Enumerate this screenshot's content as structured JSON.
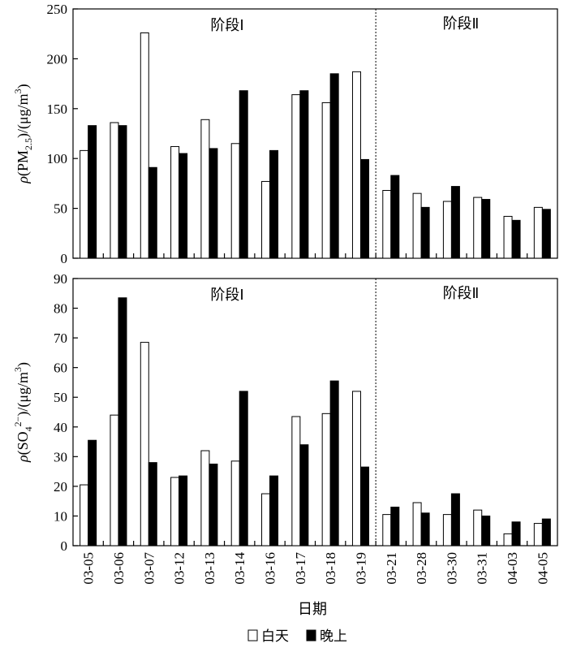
{
  "chart_data": [
    {
      "type": "bar",
      "categories": [
        "03-05",
        "03-06",
        "03-07",
        "03-12",
        "03-13",
        "03-14",
        "03-16",
        "03-17",
        "03-18",
        "03-19",
        "03-21",
        "03-28",
        "03-30",
        "03-31",
        "04-03",
        "04-05"
      ],
      "series": [
        {
          "name": "白天",
          "values": [
            108,
            136,
            226,
            112,
            139,
            115,
            77,
            164,
            156,
            187,
            68,
            65,
            57,
            61,
            42,
            51
          ],
          "color": "#ffffff"
        },
        {
          "name": "晚上",
          "values": [
            133,
            133,
            91,
            105,
            110,
            168,
            108,
            168,
            185,
            99,
            83,
            51,
            72,
            59,
            38,
            49
          ],
          "color": "#000000"
        }
      ],
      "ylabel_main": "ρ(PM",
      "ylabel_sub": "2.5",
      "ylabel_end": ")/(μg/m",
      "ylabel_sup": "3",
      "ylabel_close": ")",
      "ylim": [
        0,
        250
      ],
      "yticks": [
        0,
        50,
        100,
        150,
        200,
        250
      ],
      "phase_labels": [
        "阶段Ⅰ",
        "阶段Ⅱ"
      ],
      "phase_split_after_index": 9
    },
    {
      "type": "bar",
      "categories": [
        "03-05",
        "03-06",
        "03-07",
        "03-12",
        "03-13",
        "03-14",
        "03-16",
        "03-17",
        "03-18",
        "03-19",
        "03-21",
        "03-28",
        "03-30",
        "03-31",
        "04-03",
        "04-05"
      ],
      "series": [
        {
          "name": "白天",
          "values": [
            20.5,
            44,
            68.5,
            23,
            32,
            28.5,
            17.5,
            43.5,
            44.5,
            52,
            10.5,
            14.5,
            10.5,
            12,
            4,
            7.5
          ],
          "color": "#ffffff"
        },
        {
          "name": "晚上",
          "values": [
            35.5,
            83.5,
            28,
            23.5,
            27.5,
            52,
            23.5,
            34,
            55.5,
            26.5,
            13,
            11,
            17.5,
            10,
            8,
            9
          ],
          "color": "#000000"
        }
      ],
      "ylabel_main": "ρ(SO",
      "ylabel_sub": "4",
      "ylabel_sup2": "2−",
      "ylabel_end": ")/(μg/m",
      "ylabel_sup": "3",
      "ylabel_close": ")",
      "ylim": [
        0,
        90
      ],
      "yticks": [
        0,
        10,
        20,
        30,
        40,
        50,
        60,
        70,
        80,
        90
      ],
      "phase_labels": [
        "阶段Ⅰ",
        "阶段Ⅱ"
      ],
      "phase_split_after_index": 9
    }
  ],
  "xlabel": "日期",
  "legend": {
    "placement": "bottom",
    "items": [
      {
        "label": "白天",
        "color": "#ffffff"
      },
      {
        "label": "晚上",
        "color": "#000000"
      }
    ]
  }
}
